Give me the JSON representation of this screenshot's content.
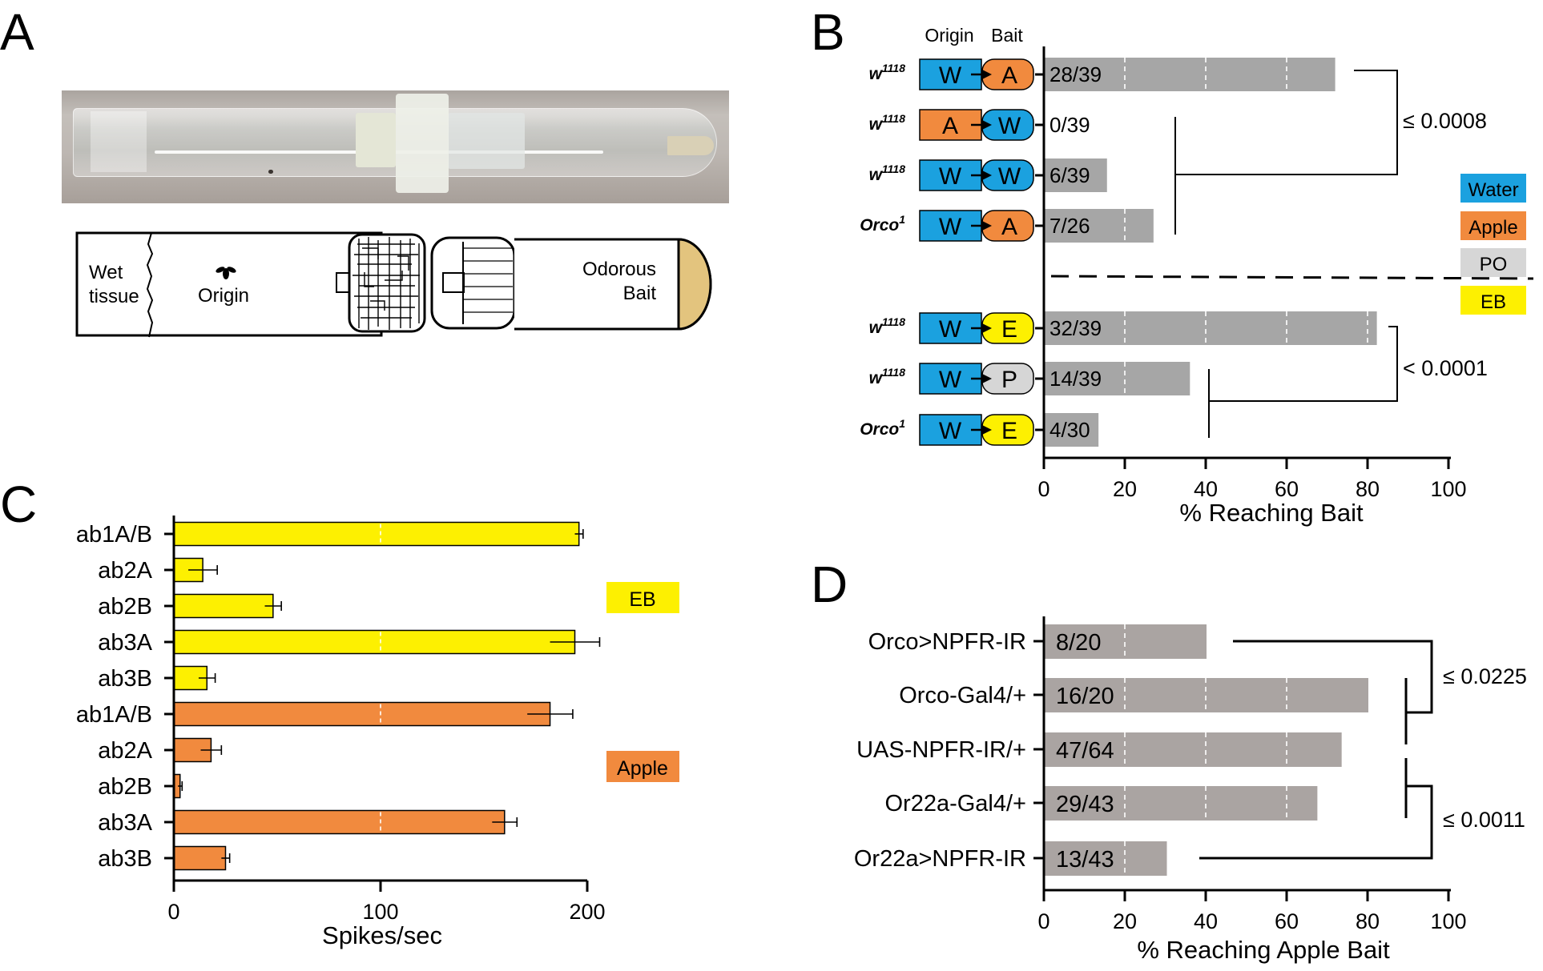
{
  "panel_labels": [
    "A",
    "B",
    "C",
    "D"
  ],
  "colors": {
    "water": "#1ba1df",
    "apple": "#f18a3e",
    "po": "#d6d6d6",
    "eb": "#fdf001",
    "bar_b": "#a6a6a6",
    "bar_d": "#aaa4a2",
    "ink": "#000000"
  },
  "panel_a": {
    "photo": "glass tube assembly photo",
    "wet_tissue": [
      "Wet",
      "tissue"
    ],
    "origin": "Origin",
    "bait": [
      "Odorous",
      "Bait"
    ]
  },
  "panel_b": {
    "col_headers": [
      "Origin",
      "Bait"
    ],
    "legend": [
      {
        "label": "Water",
        "color": "#1ba1df"
      },
      {
        "label": "Apple",
        "color": "#f18a3e"
      },
      {
        "label": "PO",
        "color": "#d6d6d6"
      },
      {
        "label": "EB",
        "color": "#fdf001"
      }
    ],
    "rows": [
      {
        "genotype": "w",
        "sup": "1118",
        "origin": "W",
        "bait": "A",
        "origin_color": "#1ba1df",
        "bait_color": "#f18a3e",
        "count": "28/39"
      },
      {
        "genotype": "w",
        "sup": "1118",
        "origin": "A",
        "bait": "W",
        "origin_color": "#f18a3e",
        "bait_color": "#1ba1df",
        "count": "0/39"
      },
      {
        "genotype": "w",
        "sup": "1118",
        "origin": "W",
        "bait": "W",
        "origin_color": "#1ba1df",
        "bait_color": "#1ba1df",
        "count": "6/39"
      },
      {
        "genotype": "Orco",
        "sup": "1",
        "origin": "W",
        "bait": "A",
        "origin_color": "#1ba1df",
        "bait_color": "#f18a3e",
        "count": "7/26"
      },
      {
        "genotype": "w",
        "sup": "1118",
        "origin": "W",
        "bait": "E",
        "origin_color": "#1ba1df",
        "bait_color": "#fdf001",
        "count": "32/39"
      },
      {
        "genotype": "w",
        "sup": "1118",
        "origin": "W",
        "bait": "P",
        "origin_color": "#1ba1df",
        "bait_color": "#d6d6d6",
        "count": "14/39"
      },
      {
        "genotype": "Orco",
        "sup": "1",
        "origin": "W",
        "bait": "E",
        "origin_color": "#1ba1df",
        "bait_color": "#fdf001",
        "count": "4/30"
      }
    ],
    "pvalues": [
      "≤ 0.0008",
      "< 0.0001"
    ]
  },
  "panel_d": {
    "pvalues": [
      "≤ 0.0225",
      "≤ 0.0011"
    ]
  },
  "chart_data": [
    {
      "panel": "B",
      "type": "bar",
      "orientation": "horizontal",
      "xlabel": "% Reaching Bait",
      "xlim": [
        0,
        100
      ],
      "xticks": [
        "0",
        "20",
        "40",
        "60",
        "80",
        "100"
      ],
      "values": [
        71.8,
        0,
        15.4,
        26.9,
        82.1,
        35.9,
        13.3
      ],
      "grid": "dashed white lines at 20, 40, 60, 80"
    },
    {
      "panel": "C",
      "type": "bar",
      "orientation": "horizontal",
      "categories": [
        "ab1A/B",
        "ab2A",
        "ab2B",
        "ab3A",
        "ab3B",
        "ab1A/B",
        "ab2A",
        "ab2B",
        "ab3A",
        "ab3B"
      ],
      "values": [
        196,
        14,
        48,
        194,
        16,
        182,
        18,
        3,
        160,
        25
      ],
      "errors": [
        2,
        7,
        4,
        12,
        4,
        11,
        5,
        1,
        6,
        2
      ],
      "colors": [
        "#fdf001",
        "#fdf001",
        "#fdf001",
        "#fdf001",
        "#fdf001",
        "#f18a3e",
        "#f18a3e",
        "#f18a3e",
        "#f18a3e",
        "#f18a3e"
      ],
      "xlabel": "Spikes/sec",
      "xlim": [
        0,
        200
      ],
      "xticks": [
        "0",
        "100",
        "200"
      ],
      "legend": [
        {
          "label": "EB",
          "color": "#fdf001"
        },
        {
          "label": "Apple",
          "color": "#f18a3e"
        }
      ]
    },
    {
      "panel": "D",
      "type": "bar",
      "orientation": "horizontal",
      "categories": [
        "Orco>NPFR-IR",
        "Orco-Gal4/+",
        "UAS-NPFR-IR/+",
        "Or22a-Gal4/+",
        "Or22a>NPFR-IR"
      ],
      "counts": [
        "8/20",
        "16/20",
        "47/64",
        "29/43",
        "13/43"
      ],
      "values": [
        40,
        80,
        73.4,
        67.4,
        30.2
      ],
      "xlabel": "% Reaching Apple Bait",
      "xlim": [
        0,
        100
      ],
      "xticks": [
        "0",
        "20",
        "40",
        "60",
        "80",
        "100"
      ]
    }
  ]
}
